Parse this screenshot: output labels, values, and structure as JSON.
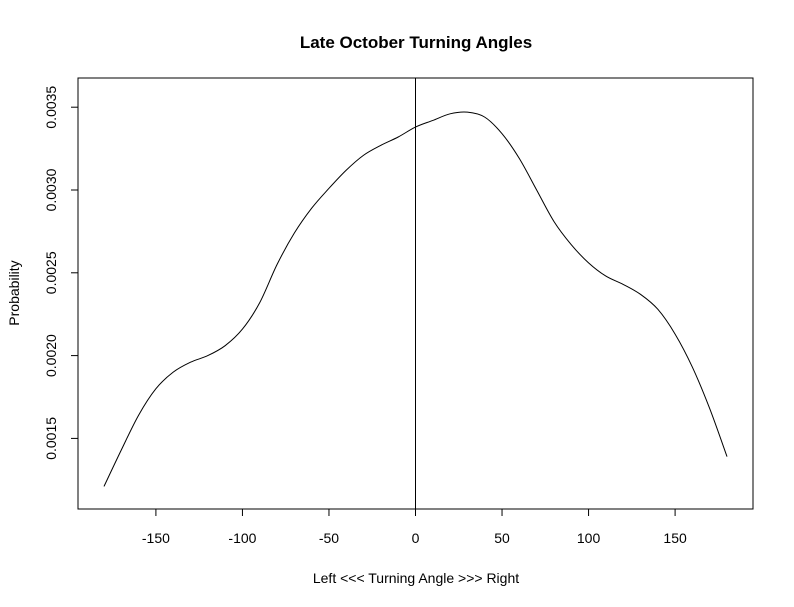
{
  "chart_data": {
    "type": "line",
    "title": "Late October Turning Angles",
    "xlabel": "Left <<< Turning Angle >>> Right",
    "ylabel": "Probability",
    "xlim": [
      -180,
      180
    ],
    "ylim": [
      0.00117,
      0.00358
    ],
    "x_ticks": [
      -150,
      -100,
      -50,
      0,
      50,
      100,
      150
    ],
    "x_tick_labels": [
      "-150",
      "-100",
      "-50",
      "0",
      "50",
      "100",
      "150"
    ],
    "y_ticks": [
      0.0015,
      0.002,
      0.0025,
      0.003,
      0.0035
    ],
    "y_tick_labels": [
      "0.0015",
      "0.0020",
      "0.0025",
      "0.0030",
      "0.0035"
    ],
    "vertical_reference_line_x": 0,
    "grid": false,
    "series": [
      {
        "x": [
          -180,
          -170,
          -160,
          -150,
          -140,
          -130,
          -120,
          -110,
          -100,
          -90,
          -80,
          -70,
          -60,
          -50,
          -40,
          -30,
          -20,
          -10,
          0,
          10,
          20,
          30,
          40,
          50,
          60,
          70,
          80,
          90,
          100,
          110,
          120,
          130,
          140,
          150,
          160,
          170,
          180
        ],
        "y": [
          0.00121,
          0.00143,
          0.00164,
          0.0018,
          0.0019,
          0.00196,
          0.002,
          0.00206,
          0.00216,
          0.00232,
          0.00255,
          0.00274,
          0.00289,
          0.00301,
          0.00312,
          0.00321,
          0.00327,
          0.00332,
          0.00338,
          0.00342,
          0.00346,
          0.00347,
          0.00344,
          0.00334,
          0.00319,
          0.003,
          0.00281,
          0.00267,
          0.00256,
          0.00248,
          0.00243,
          0.00237,
          0.00228,
          0.00213,
          0.00193,
          0.00168,
          0.00139
        ]
      }
    ]
  }
}
